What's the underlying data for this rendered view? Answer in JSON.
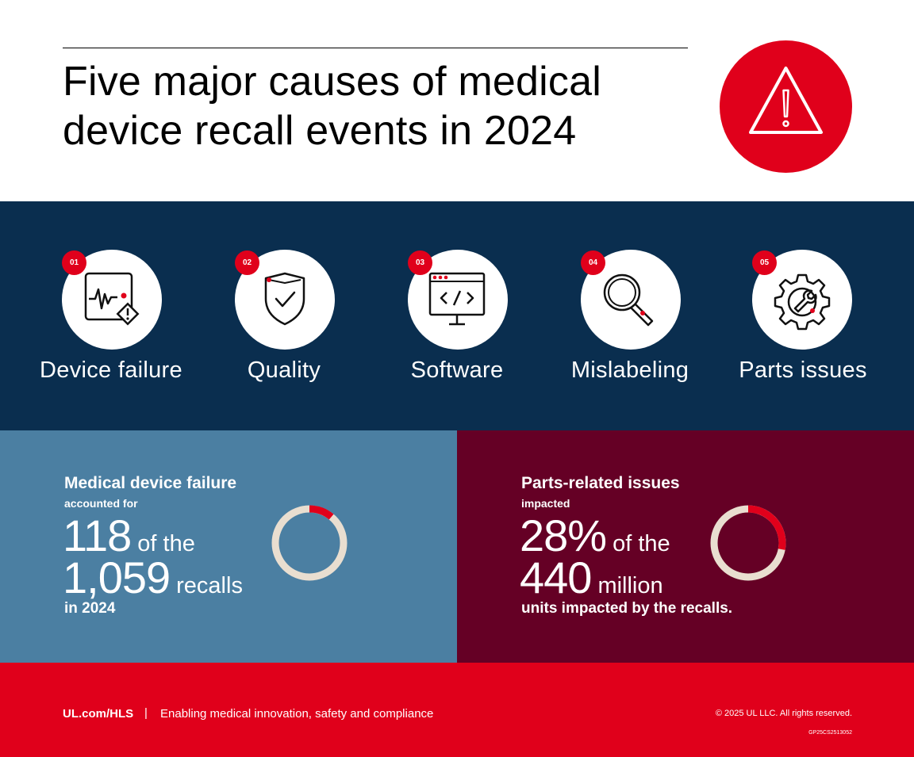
{
  "header": {
    "title_line1": "Five major causes of medical",
    "title_line2": "device recall events in 2024",
    "badge_icon": "warning-triangle-icon"
  },
  "causes": [
    {
      "number": "01",
      "label": "Device failure",
      "icon": "monitor-heartbeat-warning-icon"
    },
    {
      "number": "02",
      "label": "Quality",
      "icon": "shield-check-icon"
    },
    {
      "number": "03",
      "label": "Software",
      "icon": "code-monitor-icon"
    },
    {
      "number": "04",
      "label": "Mislabeling",
      "icon": "magnifier-tag-icon"
    },
    {
      "number": "05",
      "label": "Parts issues",
      "icon": "gear-wrench-icon"
    }
  ],
  "stat_left": {
    "title": "Medical device failure",
    "subtitle": "accounted for",
    "big1": "118",
    "rest1": "of the",
    "big2": "1,059",
    "rest2": "recalls",
    "footer": "in 2024",
    "donut_fraction": 0.111
  },
  "stat_right": {
    "title": "Parts-related issues",
    "subtitle": "impacted",
    "big1": "28%",
    "rest1": "of the",
    "big2": "440",
    "rest2": "million",
    "footer": "units impacted by the recalls.",
    "donut_fraction": 0.28
  },
  "footer": {
    "url": "UL.com/HLS",
    "separator": "|",
    "tagline": "Enabling medical innovation, safety and compliance",
    "copyright": "© 2025 UL LLC. All rights reserved.",
    "code": "GP25CS2513052"
  },
  "colors": {
    "accent_red": "#e0001b",
    "navy": "#0a2e4f",
    "steel_blue": "#4b7fa2",
    "maroon": "#650025",
    "donut_track": "#e9ded0"
  }
}
